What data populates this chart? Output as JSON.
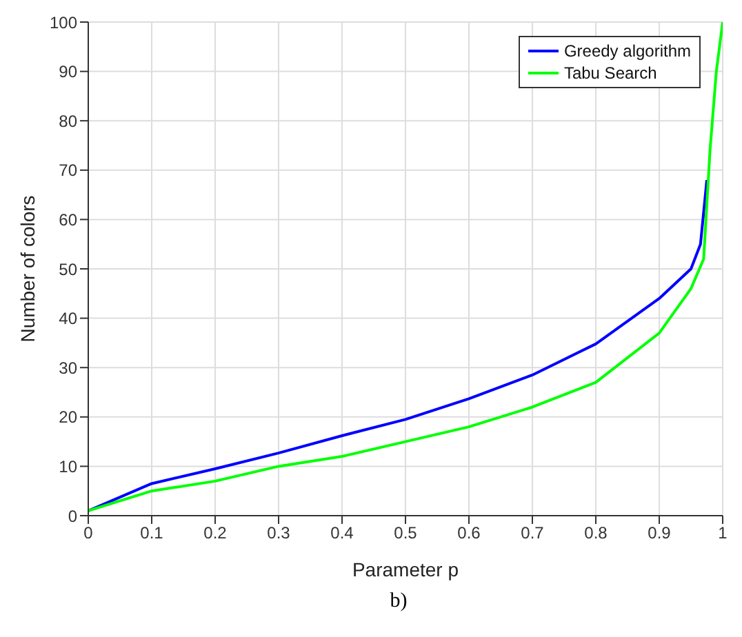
{
  "chart_data": {
    "type": "line",
    "xlabel": "Parameter p",
    "ylabel": "Number of colors",
    "annotations": [
      "b)"
    ],
    "x": [
      0,
      0.1,
      0.2,
      0.3,
      0.4,
      0.5,
      0.6,
      0.7,
      0.8,
      0.9,
      0.95,
      0.97,
      0.98,
      0.99,
      1
    ],
    "series": [
      {
        "name": "Greedy algorithm",
        "color": "#0000ff",
        "x": [
          0,
          0.1,
          0.2,
          0.3,
          0.4,
          0.5,
          0.6,
          0.7,
          0.8,
          0.9,
          0.95,
          0.965,
          0.975
        ],
        "values": [
          1,
          6.5,
          9.5,
          12.7,
          16.2,
          19.5,
          23.7,
          28.5,
          34.8,
          44,
          50,
          55,
          68
        ]
      },
      {
        "name": "Tabu Search",
        "color": "#00ff00",
        "values": [
          1,
          5,
          7,
          10,
          12,
          15,
          18,
          22,
          27,
          37,
          46,
          52,
          74,
          90,
          100
        ]
      }
    ],
    "xlim": [
      0,
      1
    ],
    "xticks": [
      0,
      0.1,
      0.2,
      0.3,
      0.4,
      0.5,
      0.6,
      0.7,
      0.8,
      0.9,
      1
    ],
    "ylim": [
      0,
      100
    ],
    "yticks": [
      0,
      10,
      20,
      30,
      40,
      50,
      60,
      70,
      80,
      90,
      100
    ],
    "grid": true,
    "legend": "top right",
    "marker": "none",
    "line_style": "solid"
  }
}
